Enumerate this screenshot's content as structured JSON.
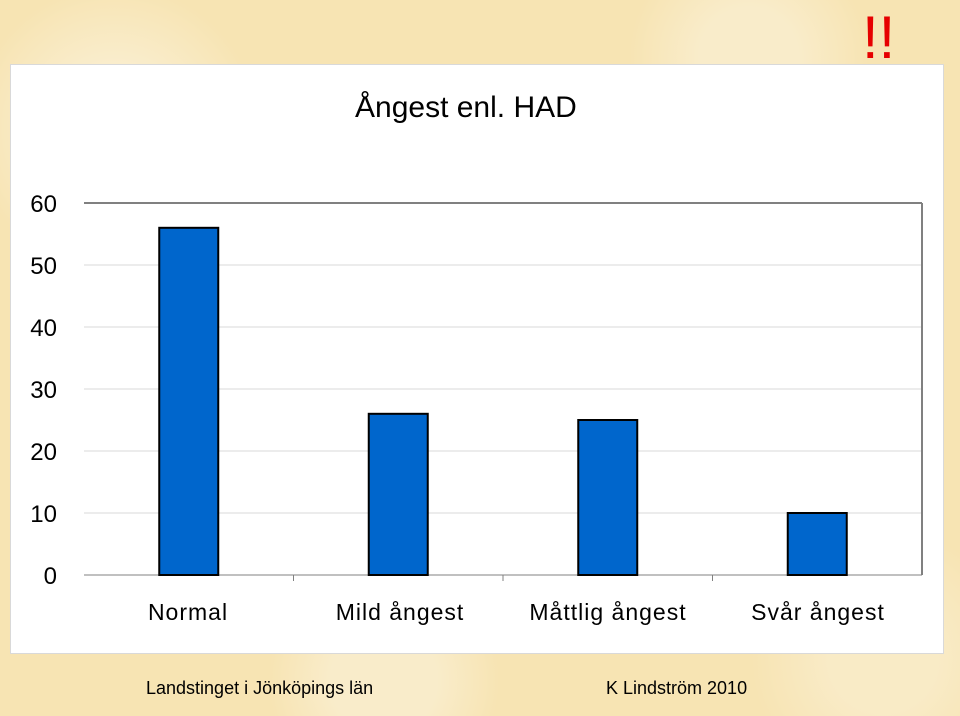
{
  "header": {
    "marker": "!!"
  },
  "footer": {
    "left": "Landstinget i Jönköpings län",
    "right": "K Lindström 2010"
  },
  "chart_data": {
    "type": "bar",
    "title": "Ångest enl. HAD",
    "categories": [
      "Normal",
      "Mild ångest",
      "Måttlig ångest",
      "Svår ångest"
    ],
    "values": [
      56,
      26,
      25,
      10
    ],
    "ylim": [
      0,
      60
    ],
    "yticks": [
      0,
      10,
      20,
      30,
      40,
      50,
      60
    ],
    "xlabel": "",
    "ylabel": "",
    "grid": true,
    "colors": {
      "bar": "#0066CC",
      "bar_outline": "#000000",
      "grid": "#d9d9d9",
      "axis": "#808080"
    }
  }
}
